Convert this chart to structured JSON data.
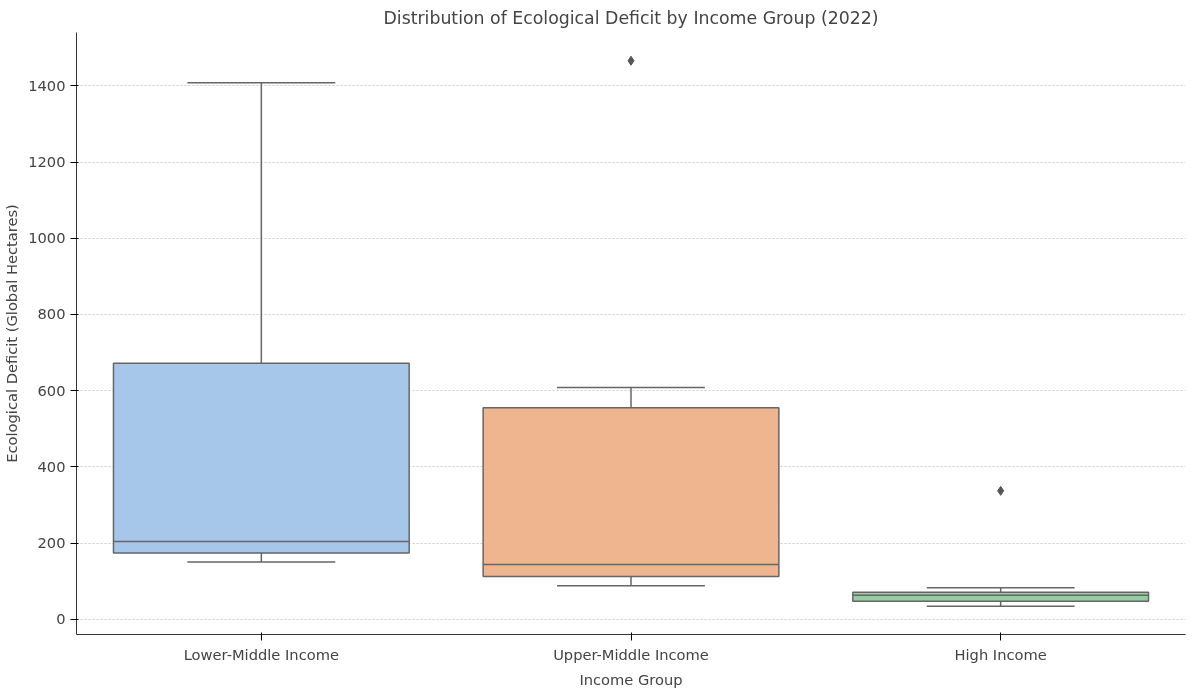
{
  "chart_data": {
    "type": "box",
    "title": "Distribution of Ecological Deficit by Income Group (2022)",
    "xlabel": "Income Group",
    "ylabel": "Ecological Deficit (Global Hectares)",
    "categories": [
      "Lower-Middle Income",
      "Upper-Middle Income",
      "High Income"
    ],
    "colors": [
      "#a6c6ea",
      "#efb58f",
      "#93cfa0"
    ],
    "boxes": [
      {
        "low": 150,
        "q1": 174,
        "median": 204,
        "q3": 672,
        "high": 1408
      },
      {
        "low": 88,
        "q1": 112,
        "median": 144,
        "q3": 555,
        "high": 608,
        "outliers": [
          1466
        ]
      },
      {
        "low": 34,
        "q1": 47,
        "median": 63,
        "q3": 71,
        "high": 83,
        "outliers": [
          337
        ]
      }
    ],
    "ylim": [
      -40,
      1540
    ],
    "yticks": [
      0,
      200,
      400,
      600,
      800,
      1000,
      1200,
      1400
    ],
    "grid": "y",
    "marker": "diamond"
  }
}
